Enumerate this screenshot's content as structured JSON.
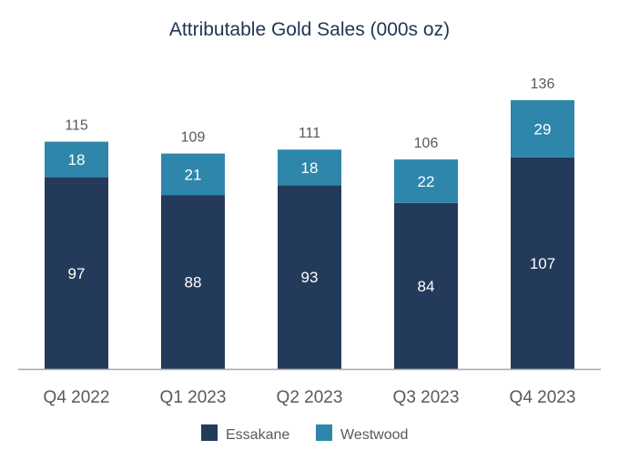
{
  "chart_data": {
    "type": "bar",
    "stacked": true,
    "title": "Attributable Gold Sales (000s oz)",
    "xlabel": "",
    "ylabel": "",
    "categories": [
      "Q4 2022",
      "Q1 2023",
      "Q2 2023",
      "Q3 2023",
      "Q4 2023"
    ],
    "series": [
      {
        "name": "Essakane",
        "values": [
          97,
          88,
          93,
          84,
          107
        ],
        "color": "#243a5a"
      },
      {
        "name": "Westwood",
        "values": [
          18,
          21,
          18,
          22,
          29
        ],
        "color": "#2e86ab"
      }
    ],
    "totals": [
      115,
      109,
      111,
      106,
      136
    ],
    "ylim": [
      0,
      136
    ],
    "grid": false,
    "legend": "bottom"
  }
}
